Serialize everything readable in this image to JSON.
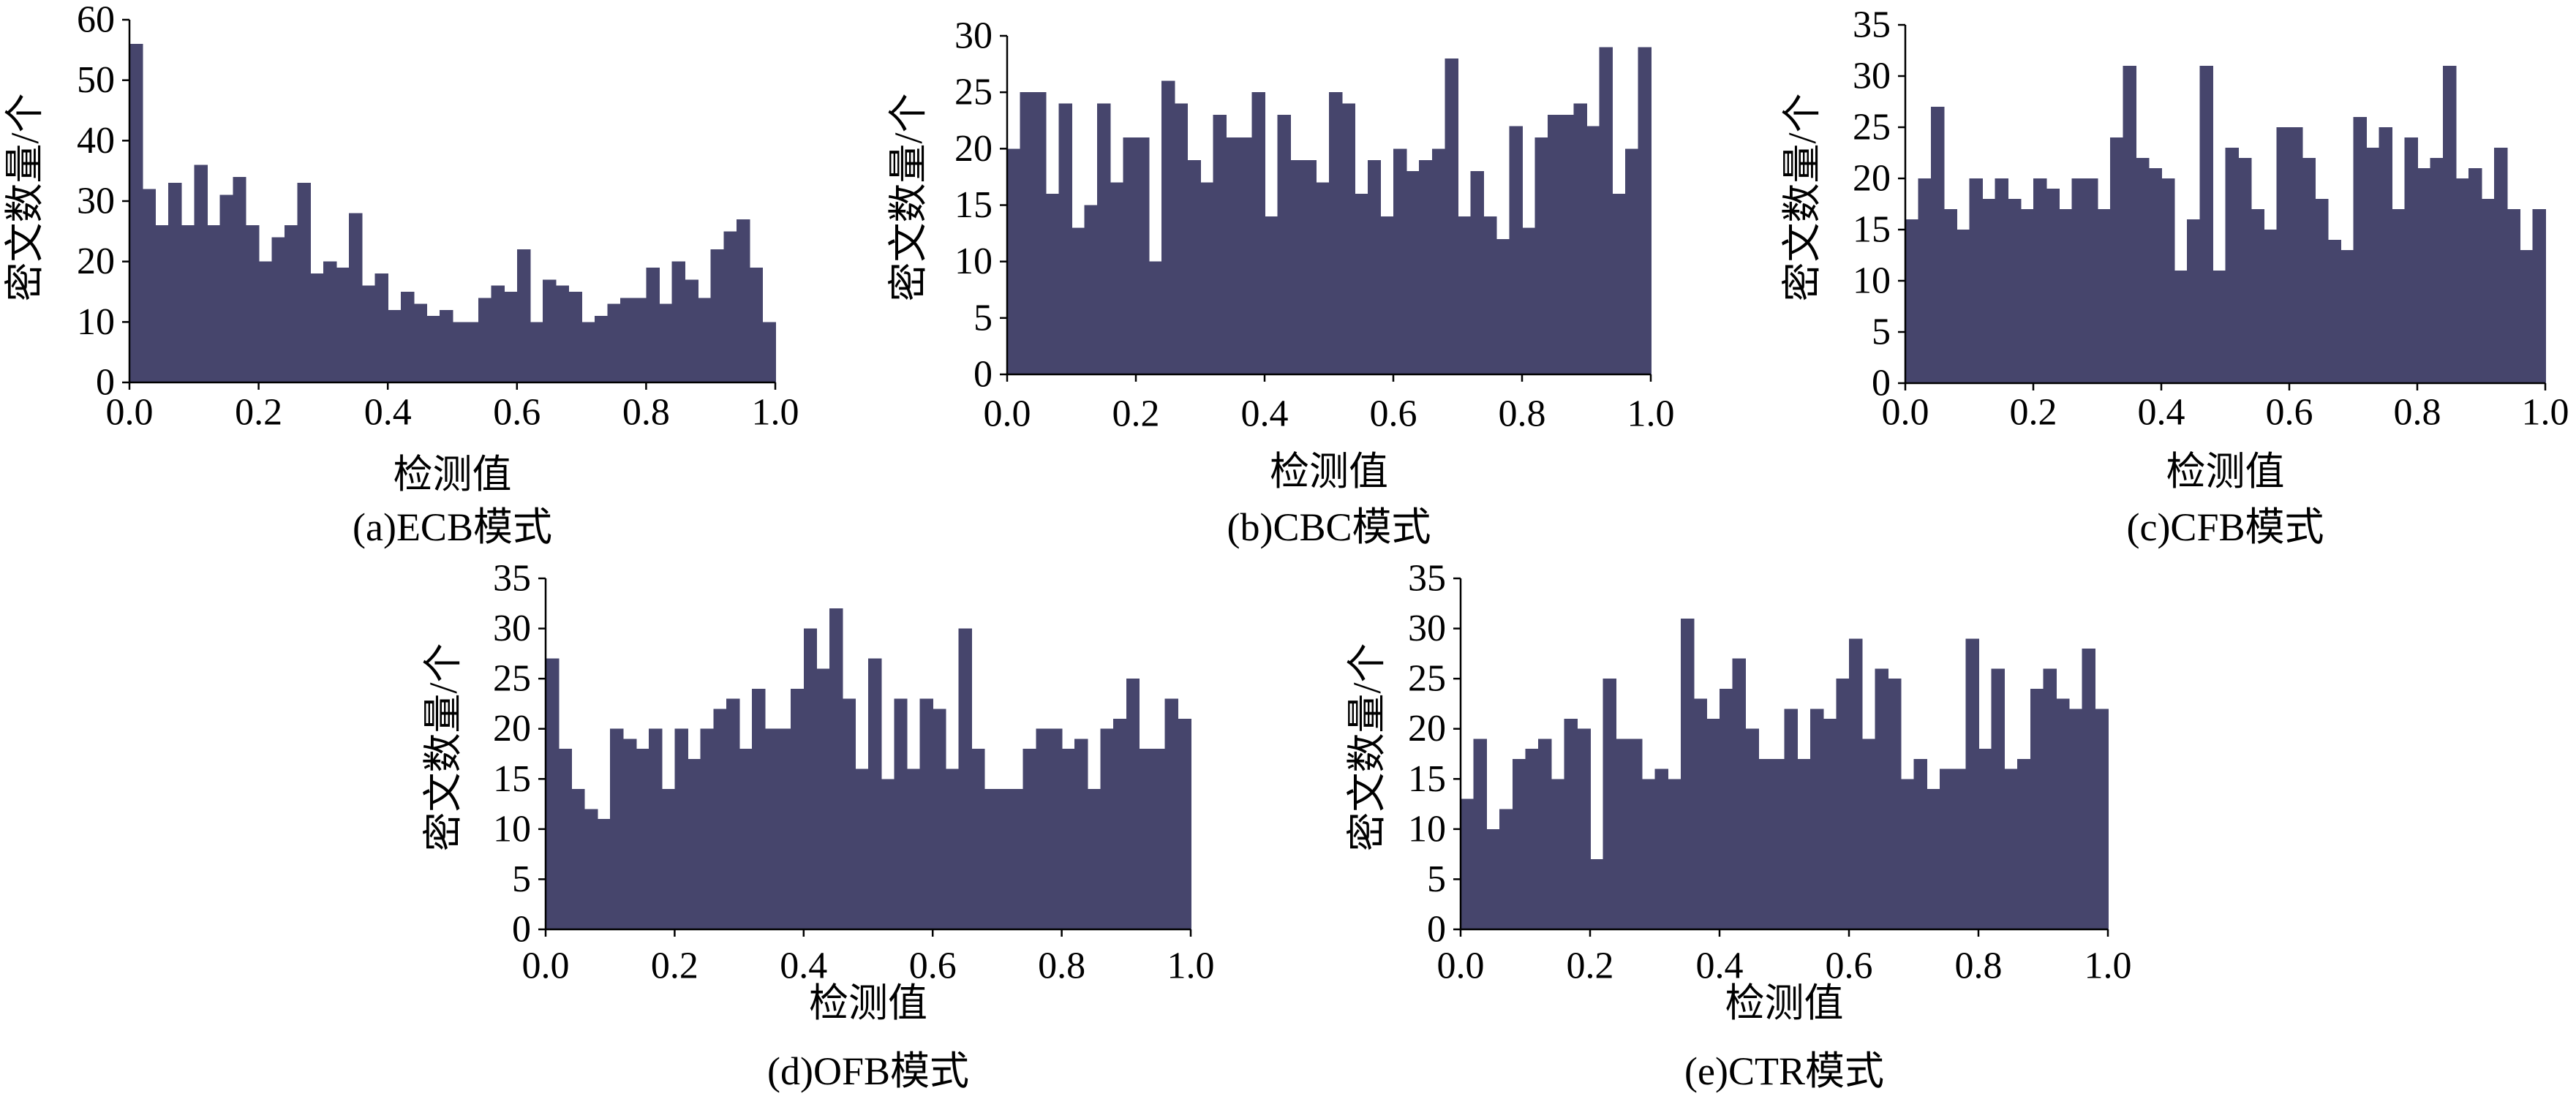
{
  "chart_data": [
    {
      "type": "bar",
      "caption": "(a)ECB模式",
      "xlabel": "检测值",
      "ylabel": "密文数量/个",
      "xlim": [
        0,
        1
      ],
      "ylim": [
        0,
        60
      ],
      "xticks": [
        "0.0",
        "0.2",
        "0.4",
        "0.6",
        "0.8",
        "1.0"
      ],
      "yticks": [
        "0",
        "10",
        "20",
        "30",
        "40",
        "50",
        "60"
      ],
      "grid": false,
      "color": "#46456c",
      "values": [
        56,
        32,
        26,
        33,
        26,
        36,
        26,
        31,
        34,
        26,
        20,
        24,
        26,
        33,
        18,
        20,
        19,
        28,
        16,
        18,
        12,
        15,
        13,
        11,
        12,
        10,
        10,
        14,
        16,
        15,
        22,
        10,
        17,
        16,
        15,
        10,
        11,
        13,
        14,
        14,
        19,
        13,
        20,
        17,
        14,
        22,
        25,
        27,
        19,
        10
      ]
    },
    {
      "type": "bar",
      "caption": "(b)CBC模式",
      "xlabel": "检测值",
      "ylabel": "密文数量/个",
      "xlim": [
        0,
        1
      ],
      "ylim": [
        0,
        30
      ],
      "xticks": [
        "0.0",
        "0.2",
        "0.4",
        "0.6",
        "0.8",
        "1.0"
      ],
      "yticks": [
        "0",
        "5",
        "10",
        "15",
        "20",
        "25",
        "30"
      ],
      "grid": false,
      "color": "#46456c",
      "values": [
        20,
        25,
        25,
        16,
        24,
        13,
        15,
        24,
        17,
        21,
        21,
        10,
        26,
        24,
        19,
        17,
        23,
        21,
        21,
        25,
        14,
        23,
        19,
        19,
        17,
        25,
        24,
        16,
        19,
        14,
        20,
        18,
        19,
        20,
        28,
        14,
        18,
        14,
        12,
        22,
        13,
        21,
        23,
        23,
        24,
        22,
        29,
        16,
        20,
        29
      ]
    },
    {
      "type": "bar",
      "caption": "(c)CFB模式",
      "xlabel": "检测值",
      "ylabel": "密文数量/个",
      "xlim": [
        0,
        1
      ],
      "ylim": [
        0,
        35
      ],
      "xticks": [
        "0.0",
        "0.2",
        "0.4",
        "0.6",
        "0.8",
        "1.0"
      ],
      "yticks": [
        "0",
        "5",
        "10",
        "15",
        "20",
        "25",
        "30",
        "35"
      ],
      "grid": false,
      "color": "#46456c",
      "values": [
        16,
        20,
        27,
        17,
        15,
        20,
        18,
        20,
        18,
        17,
        20,
        19,
        17,
        20,
        20,
        17,
        24,
        31,
        22,
        21,
        20,
        11,
        16,
        31,
        11,
        23,
        22,
        17,
        15,
        25,
        25,
        22,
        18,
        14,
        13,
        26,
        23,
        25,
        17,
        24,
        21,
        22,
        31,
        20,
        21,
        18,
        23,
        17,
        13,
        17
      ]
    },
    {
      "type": "bar",
      "caption": "(d)OFB模式",
      "xlabel": "检测值",
      "ylabel": "密文数量/个",
      "xlim": [
        0,
        1
      ],
      "ylim": [
        0,
        35
      ],
      "xticks": [
        "0.0",
        "0.2",
        "0.4",
        "0.6",
        "0.8",
        "1.0"
      ],
      "yticks": [
        "0",
        "5",
        "10",
        "15",
        "20",
        "25",
        "30",
        "35"
      ],
      "grid": false,
      "color": "#46456c",
      "values": [
        27,
        18,
        14,
        12,
        11,
        20,
        19,
        18,
        20,
        14,
        20,
        17,
        20,
        22,
        23,
        18,
        24,
        20,
        20,
        24,
        30,
        26,
        32,
        23,
        16,
        27,
        15,
        23,
        16,
        23,
        22,
        16,
        30,
        18,
        14,
        14,
        14,
        18,
        20,
        20,
        18,
        19,
        14,
        20,
        21,
        25,
        18,
        18,
        23,
        21
      ]
    },
    {
      "type": "bar",
      "caption": "(e)CTR模式",
      "xlabel": "检测值",
      "ylabel": "密文数量/个",
      "xlim": [
        0,
        1
      ],
      "ylim": [
        0,
        35
      ],
      "xticks": [
        "0.0",
        "0.2",
        "0.4",
        "0.6",
        "0.8",
        "1.0"
      ],
      "yticks": [
        "0",
        "5",
        "10",
        "15",
        "20",
        "25",
        "30",
        "35"
      ],
      "grid": false,
      "color": "#46456c",
      "values": [
        13,
        19,
        10,
        12,
        17,
        18,
        19,
        15,
        21,
        20,
        7,
        25,
        19,
        19,
        15,
        16,
        15,
        31,
        23,
        21,
        24,
        27,
        20,
        17,
        17,
        22,
        17,
        22,
        21,
        25,
        29,
        19,
        26,
        25,
        15,
        17,
        14,
        16,
        16,
        29,
        18,
        26,
        16,
        17,
        24,
        26,
        23,
        22,
        28,
        22
      ]
    }
  ]
}
